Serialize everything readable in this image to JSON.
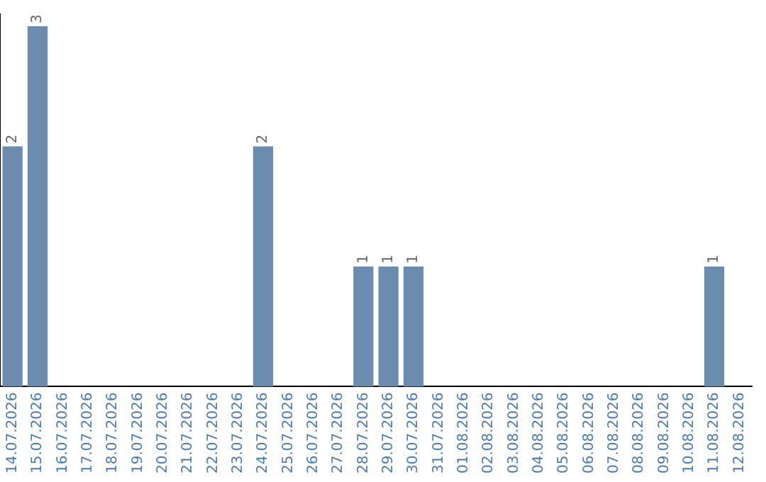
{
  "chart_data": {
    "type": "bar",
    "categories": [
      "14.07.2026",
      "15.07.2026",
      "16.07.2026",
      "17.07.2026",
      "18.07.2026",
      "19.07.2026",
      "20.07.2026",
      "21.07.2026",
      "22.07.2026",
      "23.07.2026",
      "24.07.2026",
      "25.07.2026",
      "26.07.2026",
      "27.07.2026",
      "28.07.2026",
      "29.07.2026",
      "30.07.2026",
      "31.07.2026",
      "01.08.2026",
      "02.08.2026",
      "03.08.2026",
      "04.08.2026",
      "05.08.2026",
      "06.08.2026",
      "07.08.2026",
      "08.08.2026",
      "09.08.2026",
      "10.08.2026",
      "11.08.2026",
      "12.08.2026"
    ],
    "values": [
      2,
      3,
      0,
      0,
      0,
      0,
      0,
      0,
      0,
      0,
      2,
      0,
      0,
      0,
      1,
      1,
      1,
      0,
      0,
      0,
      0,
      0,
      0,
      0,
      0,
      0,
      0,
      0,
      1,
      0
    ],
    "value_labels": [
      "2",
      "3",
      null,
      null,
      null,
      null,
      null,
      null,
      null,
      null,
      "2",
      null,
      null,
      null,
      "1",
      "1",
      "1",
      null,
      null,
      null,
      null,
      null,
      null,
      null,
      null,
      null,
      null,
      null,
      "1",
      null
    ],
    "color": "#6b8cae",
    "ylim": [
      0,
      3.1
    ],
    "tick_labels": "x",
    "grid": false,
    "legend": false
  }
}
